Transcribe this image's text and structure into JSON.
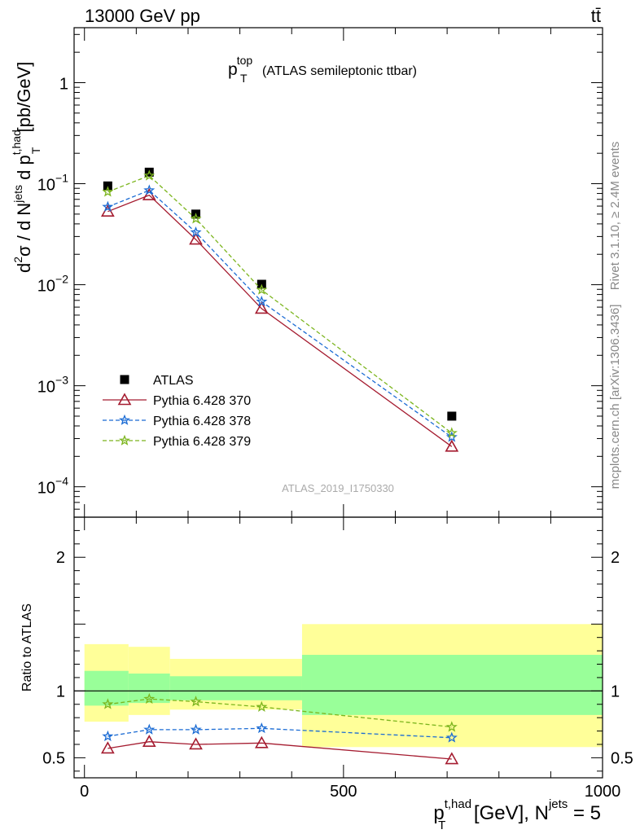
{
  "header": {
    "energy": "13000 GeV pp",
    "process": "tt̄"
  },
  "side_labels": {
    "rivet": "Rivet 3.1.10, ≥ 2.4M events",
    "mcplots": "mcplots.cern.ch [arXiv:1306.3436]"
  },
  "analysis_id": "ATLAS_2019_I1750330",
  "chart_data": [
    {
      "type": "scatter",
      "panel": "main",
      "title_main": "p",
      "title_sup": "top",
      "title_sub": "T",
      "title_rest": "(ATLAS semileptonic ttbar)",
      "ylabel": {
        "part1": "d",
        "sup1": "2",
        "part2": "σ  /  d N",
        "sup2": "jets",
        "part3": " d p",
        "sup3": "t,had",
        "sub3": "T",
        "part4": " [pb/GeV]"
      },
      "yscale": "log",
      "ylim": [
        5e-05,
        3.5
      ],
      "xlim": [
        -20,
        1000
      ],
      "yticks": [
        {
          "value": 0.0001,
          "base": "10",
          "exp": "−4"
        },
        {
          "value": 0.001,
          "base": "10",
          "exp": "−3"
        },
        {
          "value": 0.01,
          "base": "10",
          "exp": "−2"
        },
        {
          "value": 0.1,
          "base": "10",
          "exp": "−1"
        },
        {
          "value": 1,
          "base": "1",
          "exp": ""
        }
      ],
      "x": [
        45,
        125,
        215,
        342,
        709
      ],
      "series": [
        {
          "name": "ATLAS",
          "color": "#000000",
          "marker": "square",
          "line": "none",
          "values": [
            0.095,
            0.13,
            0.05,
            0.0101,
            0.0005
          ]
        },
        {
          "name": "Pythia 6.428 370",
          "color": "#a51c30",
          "marker": "open-triangle",
          "line": "solid",
          "values": [
            0.053,
            0.077,
            0.028,
            0.0058,
            0.00025
          ]
        },
        {
          "name": "Pythia 6.428 378",
          "color": "#1a6bd4",
          "marker": "star",
          "line": "dashed",
          "values": [
            0.059,
            0.086,
            0.033,
            0.0068,
            0.00031
          ]
        },
        {
          "name": "Pythia 6.428 379",
          "color": "#7cb51e",
          "marker": "star",
          "line": "dashed",
          "values": [
            0.083,
            0.12,
            0.045,
            0.0089,
            0.00034
          ]
        }
      ],
      "legend_position": "bottom-left"
    },
    {
      "type": "scatter",
      "panel": "ratio",
      "ylabel": "Ratio to ATLAS",
      "ylim": [
        0.35,
        2.3
      ],
      "xlim": [
        -20,
        1000
      ],
      "yticks": [
        0.5,
        1,
        2
      ],
      "xticks": [
        0,
        500,
        1000
      ],
      "xlabel": {
        "part1": "p",
        "sup1": "t,had",
        "sub1": "T",
        "part2": " [GeV], N",
        "sup2": "jets",
        "part3": " = 5"
      },
      "reference_line": 1,
      "bands": [
        {
          "x_low": 0,
          "x_high": 85,
          "inner_low": 0.89,
          "inner_high": 1.15,
          "outer_low": 0.77,
          "outer_high": 1.35
        },
        {
          "x_low": 85,
          "x_high": 165,
          "inner_low": 0.91,
          "inner_high": 1.13,
          "outer_low": 0.82,
          "outer_high": 1.33
        },
        {
          "x_low": 165,
          "x_high": 420,
          "inner_low": 0.93,
          "inner_high": 1.11,
          "outer_low": 0.86,
          "outer_high": 1.24
        },
        {
          "x_low": 420,
          "x_high": 1000,
          "inner_low": 0.82,
          "inner_high": 1.27,
          "outer_low": 0.58,
          "outer_high": 1.5
        }
      ],
      "x": [
        45,
        125,
        215,
        342,
        709
      ],
      "series": [
        {
          "name": "Pythia 6.428 370",
          "color": "#a51c30",
          "marker": "open-triangle",
          "line": "solid",
          "values": [
            0.57,
            0.62,
            0.6,
            0.61,
            0.49
          ]
        },
        {
          "name": "Pythia 6.428 378",
          "color": "#1a6bd4",
          "marker": "star",
          "line": "dashed",
          "values": [
            0.66,
            0.71,
            0.71,
            0.72,
            0.65
          ]
        },
        {
          "name": "Pythia 6.428 379",
          "color": "#7cb51e",
          "marker": "star",
          "line": "dashed",
          "values": [
            0.9,
            0.94,
            0.92,
            0.88,
            0.73
          ]
        }
      ]
    }
  ]
}
